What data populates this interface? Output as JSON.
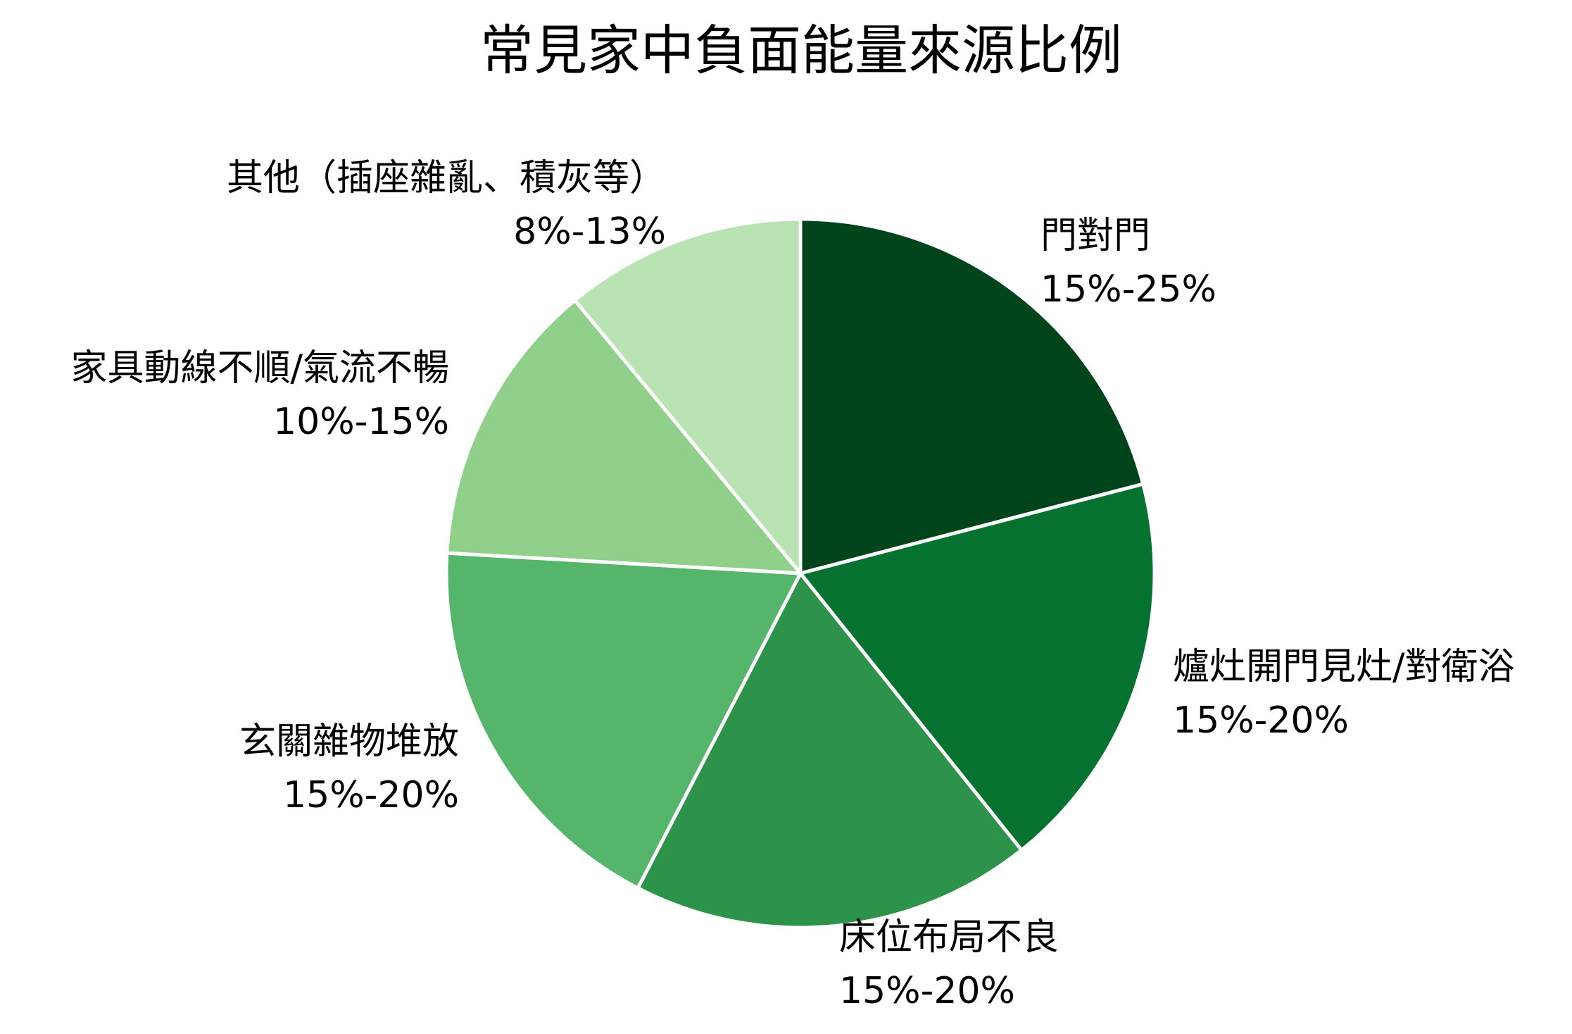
{
  "chart_data": {
    "type": "pie",
    "title": "常見家中負面能量來源比例",
    "slices": [
      {
        "label": "門對門",
        "range_text": "15%-25%",
        "value": 20,
        "color": "#00441b"
      },
      {
        "label": "爐灶開門見灶/對衛浴",
        "range_text": "15%-20%",
        "value": 17.5,
        "color": "#067230"
      },
      {
        "label": "床位布局不良",
        "range_text": "15%-20%",
        "value": 17.5,
        "color": "#2d934a"
      },
      {
        "label": "玄關雜物堆放",
        "range_text": "15%-20%",
        "value": 17.5,
        "color": "#55b56b"
      },
      {
        "label": "家具動線不順/氣流不暢",
        "range_text": "10%-15%",
        "value": 12.5,
        "color": "#90d08a"
      },
      {
        "label": "其他（插座雜亂、積灰等）",
        "range_text": "8%-13%",
        "value": 10.5,
        "color": "#b9e3b2"
      }
    ]
  }
}
